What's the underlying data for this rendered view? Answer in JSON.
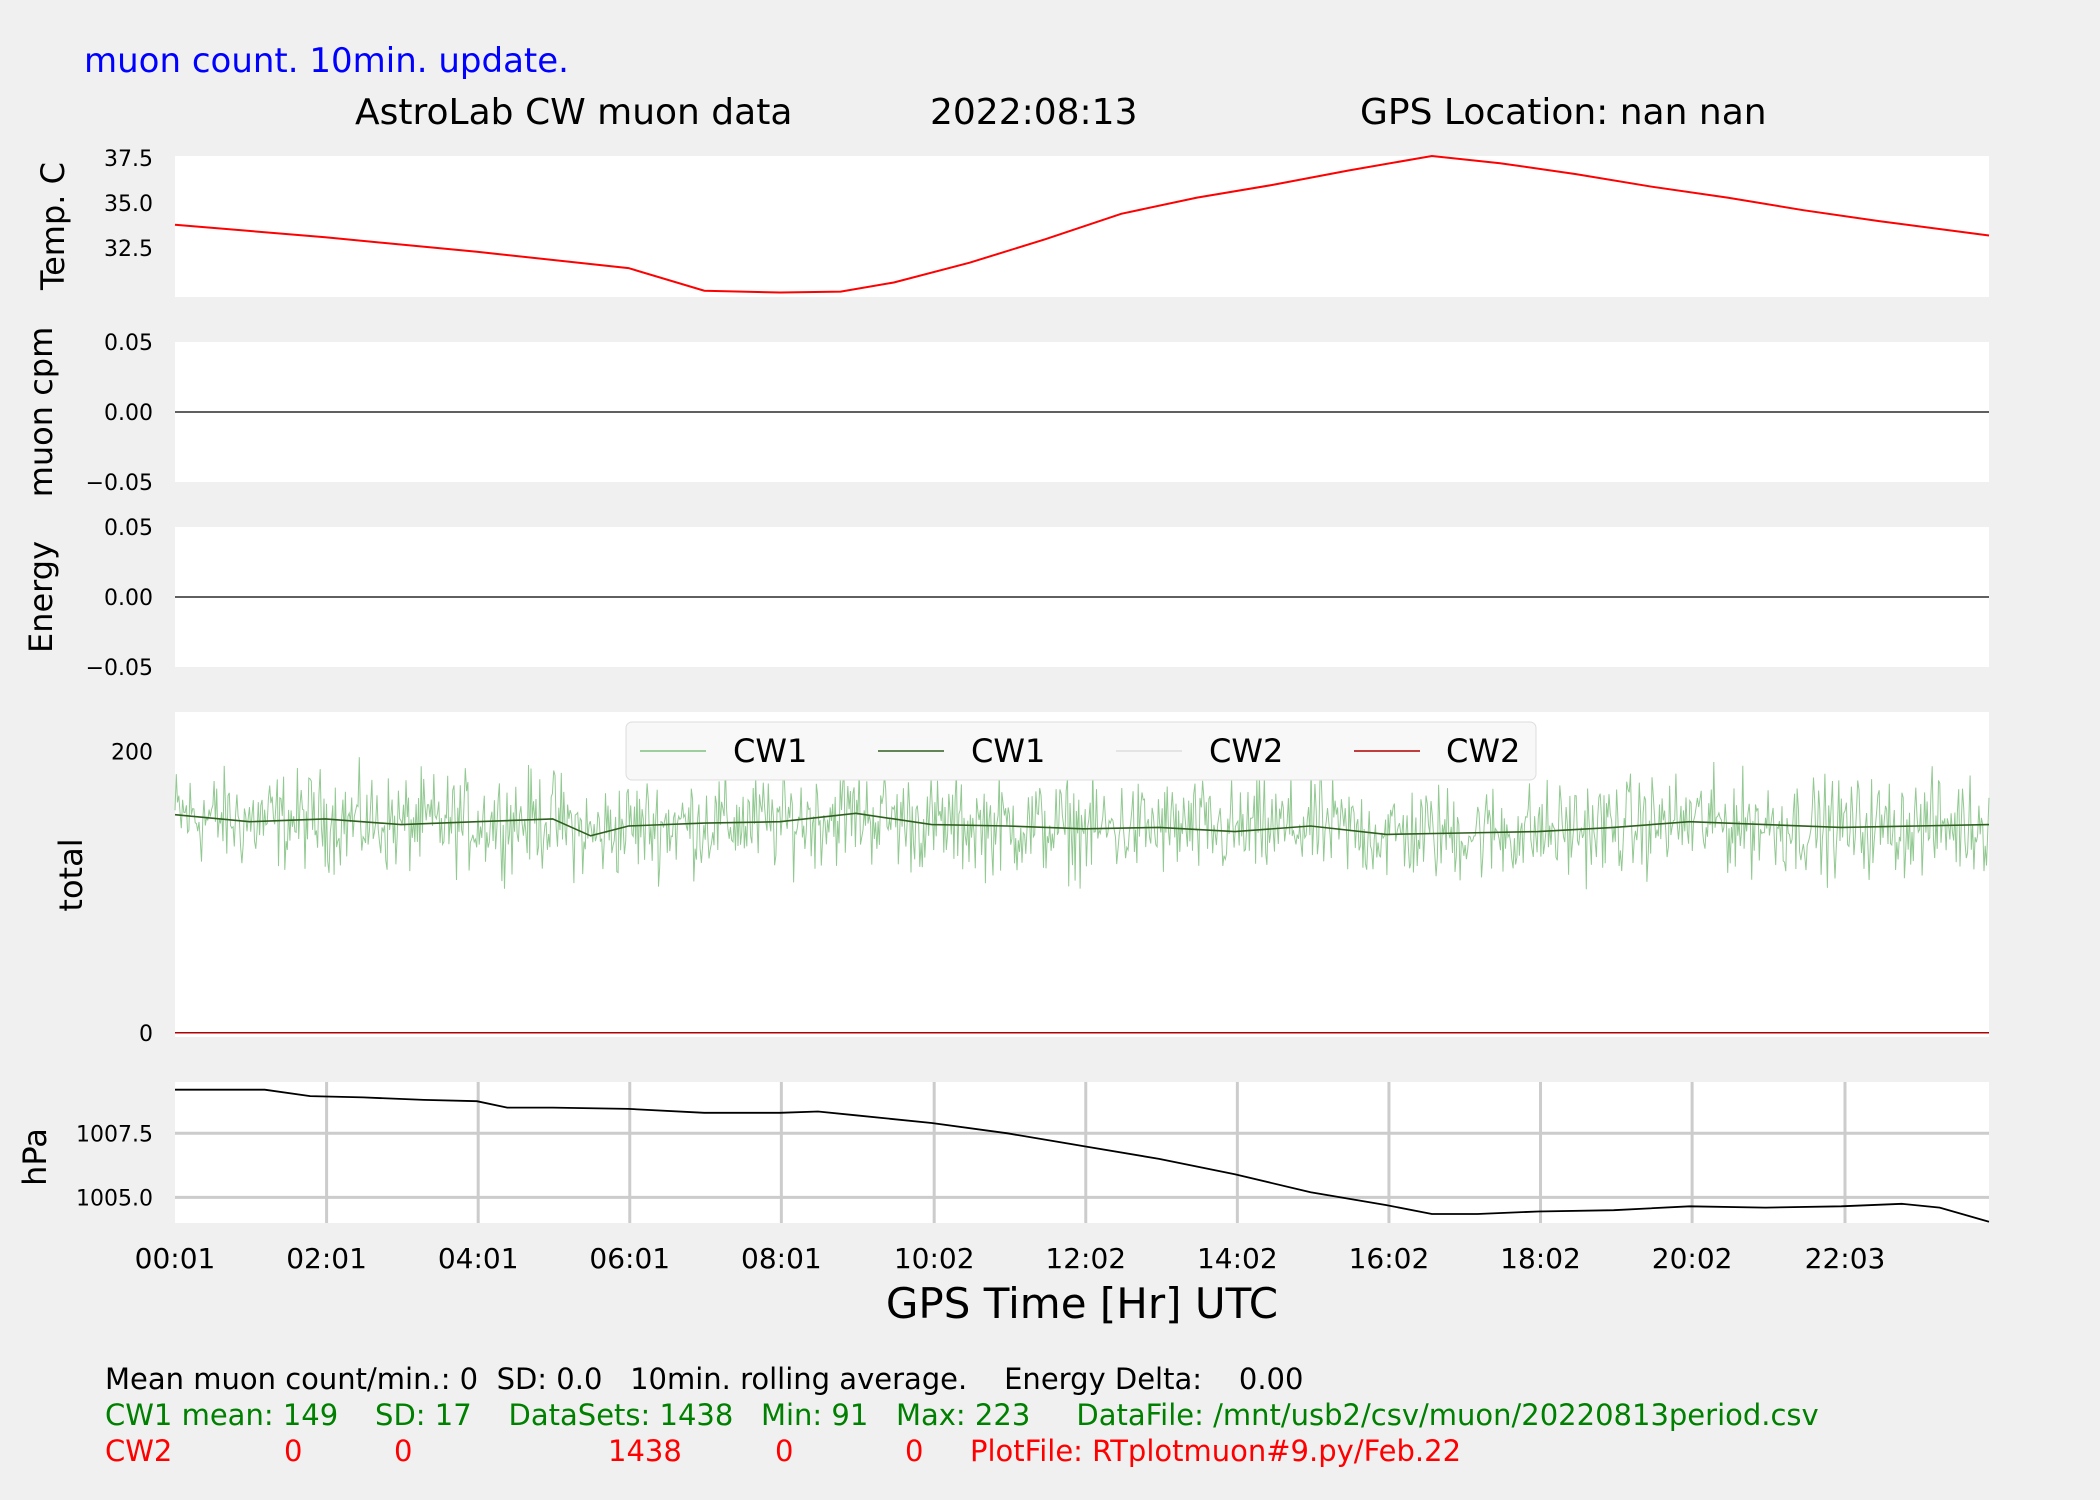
{
  "header": {
    "subtitle": "muon count.  10min. update.",
    "title": "AstroLab CW muon data",
    "date": "2022:08:13",
    "location": "GPS Location: nan   nan"
  },
  "colors": {
    "background": "#f0f0f0",
    "panel": "#ffffff",
    "temperature": "#ff0000",
    "cw1_raw": "#7fbf7f",
    "cw1_avg": "#2f5f1f",
    "cw2_raw": "#cccccc",
    "cw2_avg": "#b00000",
    "pressure": "#000000",
    "grid": "#cccccc",
    "stats_cw1": "#008000",
    "stats_cw2": "#ff0000",
    "subtitle": "#0000ff"
  },
  "chart_data": {
    "type": "line",
    "shared_x": {
      "label": "GPS Time  [Hr] UTC",
      "range_hours": [
        0.0167,
        23.95
      ],
      "tick_hours": [
        0.0167,
        2.0167,
        4.0167,
        6.0167,
        8.0167,
        10.033,
        12.033,
        14.033,
        16.033,
        18.033,
        20.033,
        22.05
      ],
      "tick_labels": [
        "00:01",
        "02:01",
        "04:01",
        "06:01",
        "08:01",
        "10:02",
        "12:02",
        "14:02",
        "16:02",
        "18:02",
        "20:02",
        "22:03"
      ]
    },
    "panels": [
      {
        "name": "temperature",
        "ylabel": "Temp. C",
        "ylim": [
          29.8,
          37.6
        ],
        "yticks": [
          32.5,
          35.0,
          37.5
        ],
        "ytick_labels": [
          "32.5",
          "35.0",
          "37.5"
        ],
        "series": [
          {
            "x": [
              0.0167,
              2,
              4,
              6,
              7,
              8,
              8.8,
              9.5,
              10.5,
              11.5,
              12.5,
              13.5,
              14.5,
              15.5,
              16.6,
              17.5,
              18.5,
              19.5,
              20.5,
              21.5,
              22.5,
              23.95
            ],
            "y": [
              33.8,
              33.1,
              32.3,
              31.4,
              30.15,
              30.05,
              30.1,
              30.6,
              31.7,
              33.0,
              34.4,
              35.3,
              36.0,
              36.8,
              37.6,
              37.2,
              36.6,
              35.9,
              35.3,
              34.6,
              34.0,
              33.2
            ]
          }
        ]
      },
      {
        "name": "muon-cpm",
        "ylabel": "muon cpm",
        "ylim": [
          -0.05,
          0.05
        ],
        "yticks": [
          0.05,
          0.0,
          -0.05
        ],
        "ytick_labels": [
          "0.05",
          "0.00",
          "−0.05"
        ],
        "series": [
          {
            "x": [
              0.0167,
              23.95
            ],
            "y": [
              0,
              0
            ]
          }
        ]
      },
      {
        "name": "energy",
        "ylabel": "Energy",
        "ylim": [
          -0.05,
          0.05
        ],
        "yticks": [
          0.05,
          0.0,
          -0.05
        ],
        "ytick_labels": [
          "0.05",
          "0.00",
          "−0.05"
        ],
        "series": [
          {
            "x": [
              0.0167,
              23.95
            ],
            "y": [
              0,
              0
            ]
          }
        ]
      },
      {
        "name": "total",
        "ylabel": "total",
        "ylim": [
          -3,
          228
        ],
        "yticks": [
          200,
          0
        ],
        "ytick_labels": [
          "200",
          "0"
        ],
        "legend": [
          "CW1",
          "CW1",
          "CW2",
          "CW2"
        ],
        "legend_placement": "top-center",
        "cw1": {
          "mean": 149,
          "sd": 17,
          "min": 91,
          "max": 223,
          "count": 1438,
          "avg_x": [
            0.0167,
            1,
            2,
            3,
            4,
            5,
            5.5,
            6,
            7,
            8,
            9,
            10,
            11,
            12,
            13,
            14,
            15,
            16,
            17,
            18,
            19,
            20,
            21,
            22,
            23,
            23.95
          ],
          "avg_y": [
            155,
            150,
            152,
            148,
            150,
            152,
            140,
            147,
            149,
            150,
            156,
            148,
            147,
            145,
            146,
            143,
            147,
            141,
            142,
            143,
            146,
            150,
            148,
            146,
            147,
            148
          ]
        },
        "cw2": {
          "mean": 0,
          "sd": 0,
          "min": 0,
          "max": 0,
          "count": 1438,
          "avg_x": [
            0.0167,
            23.95
          ],
          "avg_y": [
            0,
            0
          ]
        }
      },
      {
        "name": "pressure",
        "ylabel": "hPa",
        "ylim": [
          1004.0,
          1009.5
        ],
        "yticks": [
          1007.5,
          1005.0
        ],
        "ytick_labels": [
          "1007.5",
          "1005.0"
        ],
        "grid": true,
        "series": [
          {
            "x": [
              0.0167,
              0.8,
              1.2,
              1.8,
              2.5,
              3.3,
              4.0,
              4.4,
              5.0,
              6.0,
              7.0,
              8.0,
              8.5,
              9.0,
              10.0,
              11.0,
              12.0,
              13.0,
              14.0,
              15.0,
              16.0,
              16.6,
              17.2,
              18.0,
              19.0,
              20.0,
              21.0,
              22.0,
              22.8,
              23.3,
              23.95
            ],
            "y": [
              1009.2,
              1009.2,
              1009.2,
              1008.95,
              1008.9,
              1008.8,
              1008.75,
              1008.5,
              1008.5,
              1008.45,
              1008.3,
              1008.3,
              1008.35,
              1008.2,
              1007.9,
              1007.5,
              1007.0,
              1006.5,
              1005.9,
              1005.2,
              1004.7,
              1004.35,
              1004.35,
              1004.45,
              1004.5,
              1004.65,
              1004.6,
              1004.65,
              1004.75,
              1004.6,
              1004.05
            ]
          }
        ]
      }
    ]
  },
  "stats": {
    "line1": "Mean muon count/min.: 0  SD: 0.0   10min. rolling average.    Energy Delta:    0.00",
    "cw1": "CW1 mean: 149    SD: 17    DataSets: 1438   Min: 91   Max: 223     DataFile: /mnt/usb2/csv/muon/20220813period.csv",
    "cw2": {
      "label": "CW2",
      "mean": "0",
      "sd": "0",
      "datasets": "1438",
      "min": "0",
      "max": "0",
      "plotfile": "PlotFile: RTplotmuon#9.py/Feb.22"
    }
  }
}
